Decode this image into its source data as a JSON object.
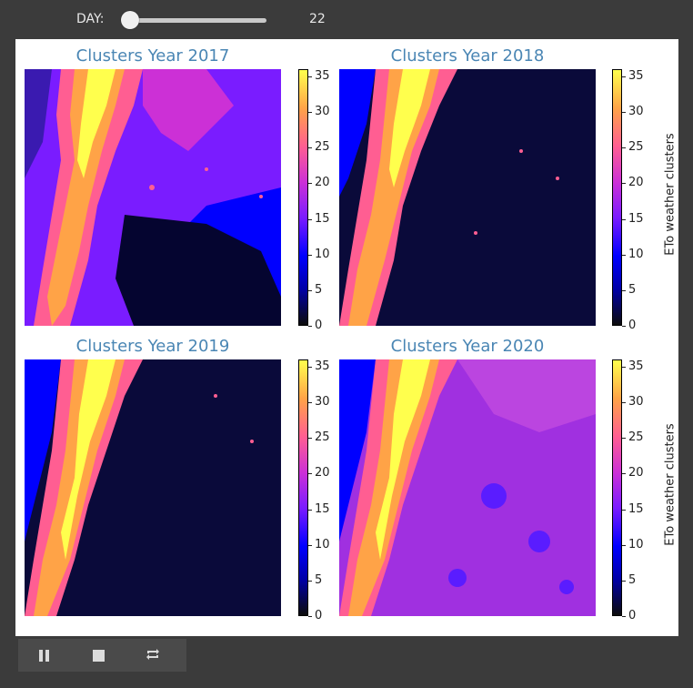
{
  "slider": {
    "label": "DAY:",
    "value": "22",
    "min": 0,
    "max": 365
  },
  "panels": [
    {
      "title": "Clusters Year 2017",
      "variant": 0
    },
    {
      "title": "Clusters Year 2018",
      "variant": 1
    },
    {
      "title": "Clusters Year 2019",
      "variant": 2
    },
    {
      "title": "Clusters Year 2020",
      "variant": 3
    }
  ],
  "colorbar": {
    "ticks": [
      "0",
      "5",
      "10",
      "15",
      "20",
      "25",
      "30",
      "35"
    ],
    "label": "ETo weather clusters",
    "colormap": "gnuplot2"
  },
  "controls": {
    "pause_icon": "pause-icon",
    "stop_icon": "stop-icon",
    "repeat_icon": "repeat-icon"
  },
  "colors": {
    "background": "#3b3b3b",
    "title": "#4a86b4",
    "yellow": "#ffff4d",
    "orange": "#ffa347",
    "pink": "#ff5e92",
    "purple": "#7a1cff",
    "blue": "#0000ff",
    "dark": "#0c0c3a"
  }
}
